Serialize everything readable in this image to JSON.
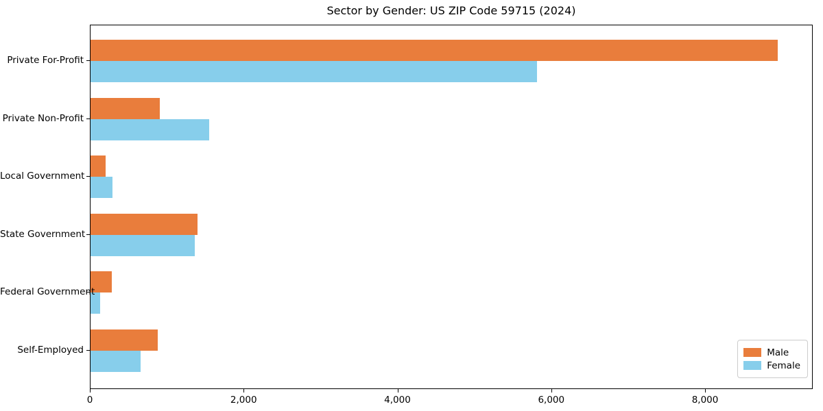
{
  "chart_data": {
    "type": "bar",
    "orientation": "horizontal",
    "title": "Sector by Gender: US ZIP Code 59715 (2024)",
    "categories": [
      "Private For-Profit",
      "Private Non-Profit",
      "Local Government",
      "State Government",
      "Federal Government",
      "Self-Employed"
    ],
    "series": [
      {
        "name": "Male",
        "color": "#e97d3c",
        "values": [
          8950,
          900,
          200,
          1390,
          280,
          875
        ]
      },
      {
        "name": "Female",
        "color": "#87ceeb",
        "values": [
          5820,
          1550,
          290,
          1355,
          125,
          650
        ]
      }
    ],
    "xlabel": "",
    "ylabel": "",
    "xlim": [
      0,
      9400
    ],
    "xticks": [
      0,
      2000,
      4000,
      6000,
      8000
    ],
    "xtick_labels": [
      "0",
      "2,000",
      "4,000",
      "6,000",
      "8,000"
    ],
    "grid": false,
    "legend": {
      "position": "lower right",
      "entries": [
        "Male",
        "Female"
      ]
    }
  },
  "colors": {
    "male": "#e97d3c",
    "female": "#87ceeb",
    "spine": "#000000",
    "legend_border": "#cccccc",
    "background": "#ffffff"
  }
}
